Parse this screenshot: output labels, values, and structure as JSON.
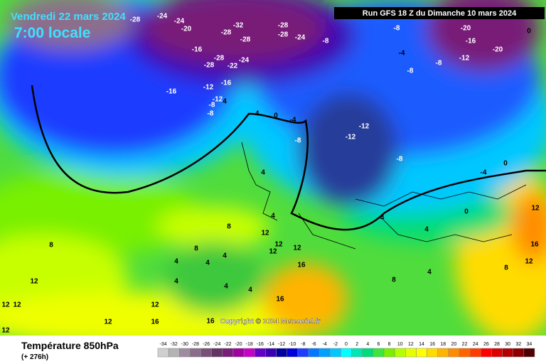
{
  "header": {
    "date": "Vendredi 22 mars 2024",
    "time": "7:00 locale",
    "run": "Run GFS 18 Z du Dimanche 10 mars 2024"
  },
  "copyright": "Copyright © 2024 Meteociel.fr",
  "footer": {
    "title": "Température 850hPa",
    "lead": "(+ 276h)"
  },
  "legend": {
    "ticks": [
      -34,
      -32,
      -30,
      -28,
      -26,
      -24,
      -22,
      -20,
      -18,
      -16,
      -14,
      -12,
      -10,
      -8,
      -6,
      -4,
      -2,
      0,
      2,
      4,
      6,
      8,
      10,
      12,
      14,
      16,
      18,
      20,
      22,
      24,
      26,
      28,
      30,
      32,
      34
    ],
    "colors": [
      "#d0d0d0",
      "#b4b4b4",
      "#a08ca0",
      "#8c6e8c",
      "#785078",
      "#643264",
      "#781e78",
      "#a000a0",
      "#c800c8",
      "#6400c8",
      "#3c00b4",
      "#0000a0",
      "#0000dc",
      "#1e3cff",
      "#0078ff",
      "#00a0ff",
      "#00c8ff",
      "#00ffff",
      "#00e6b4",
      "#00dc78",
      "#3ce63c",
      "#78f000",
      "#b4ff00",
      "#e6ff00",
      "#ffff00",
      "#ffdc00",
      "#ffb400",
      "#ff8c00",
      "#ff6400",
      "#ff3c00",
      "#ff0000",
      "#dc0000",
      "#b40000",
      "#8c0000",
      "#500000"
    ]
  },
  "contour_labels": [
    -28,
    -24,
    -24,
    -20,
    -28,
    -32,
    -28,
    -28,
    -28,
    -24,
    -8,
    -16,
    -28,
    -24,
    -28,
    -22,
    -16,
    -12,
    -16,
    -12,
    -8,
    -8,
    4,
    -4,
    0,
    -4,
    -8,
    -12,
    -12,
    -8,
    -8,
    -4,
    -8,
    -8,
    -12,
    -20,
    -16,
    -20,
    0,
    -4,
    0,
    0,
    -4,
    4,
    4,
    4,
    8,
    12,
    12,
    12,
    12,
    16,
    8,
    4,
    4,
    4,
    8,
    4,
    4,
    4,
    16,
    12,
    12,
    12,
    12,
    16,
    12,
    12,
    16,
    12,
    16,
    12,
    8,
    8,
    4
  ]
}
